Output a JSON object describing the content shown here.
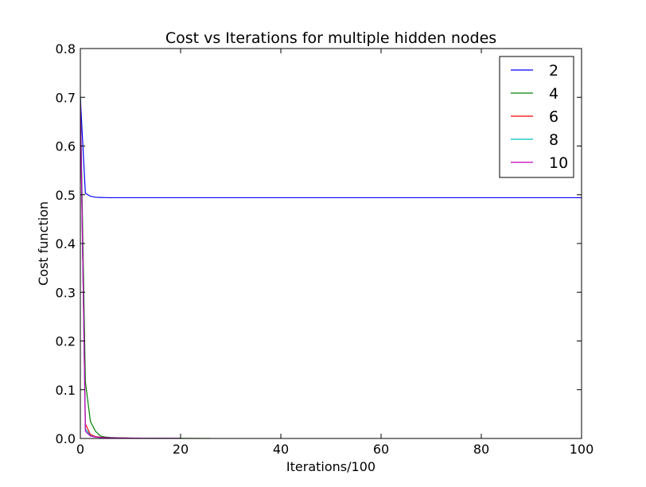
{
  "chart_data": {
    "type": "line",
    "title": "Cost vs Iterations for multiple hidden nodes",
    "xlabel": "Iterations/100",
    "ylabel": "Cost function",
    "xlim": [
      0,
      100
    ],
    "ylim": [
      0,
      0.8
    ],
    "xticks": [
      0,
      20,
      40,
      60,
      80,
      100
    ],
    "yticks": [
      0.0,
      0.1,
      0.2,
      0.3,
      0.4,
      0.5,
      0.6,
      0.7,
      0.8
    ],
    "ytick_labels": [
      "0.0",
      "0.1",
      "0.2",
      "0.3",
      "0.4",
      "0.5",
      "0.6",
      "0.7",
      "0.8"
    ],
    "grid": false,
    "legend_position": "top-right",
    "series": [
      {
        "name": "2",
        "color": "#0000ff",
        "x": [
          0,
          1,
          2,
          3,
          4,
          5,
          6,
          8,
          10,
          15,
          20,
          30,
          40,
          50,
          60,
          70,
          80,
          90,
          100
        ],
        "y": [
          0.7,
          0.503,
          0.497,
          0.495,
          0.4945,
          0.4942,
          0.494,
          0.494,
          0.494,
          0.494,
          0.494,
          0.494,
          0.494,
          0.494,
          0.494,
          0.494,
          0.494,
          0.494,
          0.494
        ]
      },
      {
        "name": "4",
        "color": "#008000",
        "x": [
          0,
          1,
          2,
          3,
          4,
          5,
          6,
          8,
          10,
          15,
          20,
          26
        ],
        "y": [
          0.7,
          0.117,
          0.035,
          0.015,
          0.005,
          0.003,
          0.002,
          0.0012,
          0.0008,
          0.0004,
          0.0002,
          0.0001
        ]
      },
      {
        "name": "6",
        "color": "#ff0000",
        "x": [
          0,
          1,
          2,
          3,
          4,
          5,
          6,
          8,
          10,
          15,
          20
        ],
        "y": [
          0.69,
          0.03,
          0.008,
          0.004,
          0.0025,
          0.0018,
          0.0014,
          0.001,
          0.0007,
          0.0004,
          0.0002
        ]
      },
      {
        "name": "8",
        "color": "#00bfbf",
        "x": [
          0,
          1,
          2,
          3,
          4,
          5,
          6,
          8,
          10,
          15,
          20
        ],
        "y": [
          0.69,
          0.02,
          0.006,
          0.003,
          0.002,
          0.0015,
          0.0012,
          0.0008,
          0.0006,
          0.0003,
          0.0002
        ]
      },
      {
        "name": "10",
        "color": "#bf00bf",
        "x": [
          0,
          1,
          2,
          3,
          4,
          5,
          6,
          8,
          10,
          15,
          20
        ],
        "y": [
          0.69,
          0.015,
          0.005,
          0.003,
          0.002,
          0.0015,
          0.0012,
          0.0008,
          0.0006,
          0.0003,
          0.0002
        ]
      }
    ]
  }
}
